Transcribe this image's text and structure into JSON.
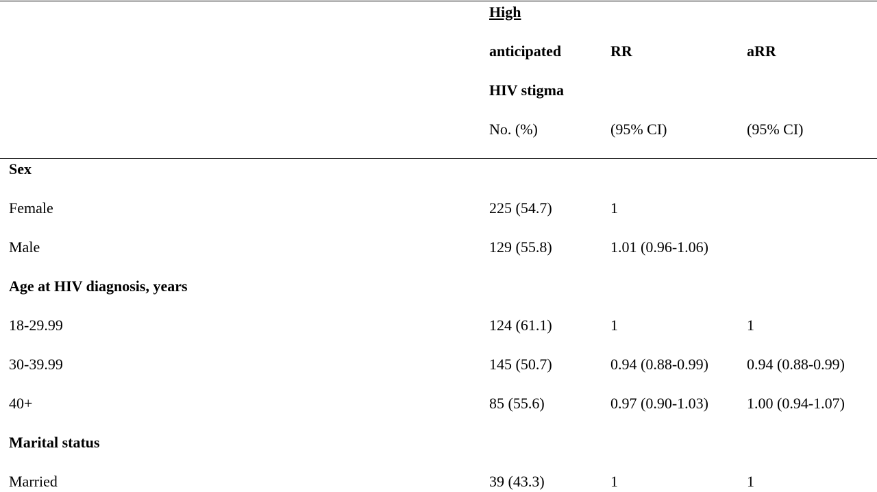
{
  "table": {
    "header": {
      "stigma": [
        "High",
        "anticipated",
        "HIV stigma",
        "No. (%)"
      ],
      "rr": [
        "RR",
        "(95% CI)"
      ],
      "arr": [
        "aRR",
        "(95% CI)"
      ]
    },
    "rows": [
      {
        "section": "Sex"
      },
      {
        "label": "Female",
        "stigma": "225 (54.7)",
        "rr": "1"
      },
      {
        "label": "Male",
        "stigma": "129 (55.8)",
        "rr": "1.01 (0.96-1.06)"
      },
      {
        "section": "Age at HIV diagnosis, years"
      },
      {
        "label": "18-29.99",
        "stigma": "124 (61.1)",
        "rr": "1",
        "arr": "1"
      },
      {
        "label": "30-39.99",
        "stigma": "145 (50.7)",
        "rr": "0.94 (0.88-0.99)",
        "arr": "0.94 (0.88-0.99)"
      },
      {
        "label": "40+",
        "stigma": "85 (55.6)",
        "rr": "0.97 (0.90-1.03)",
        "arr": "1.00 (0.94-1.07)"
      },
      {
        "section": "Marital status"
      },
      {
        "label": "Married",
        "stigma": "39 (43.3)",
        "rr": "1",
        "arr": "1"
      }
    ]
  }
}
